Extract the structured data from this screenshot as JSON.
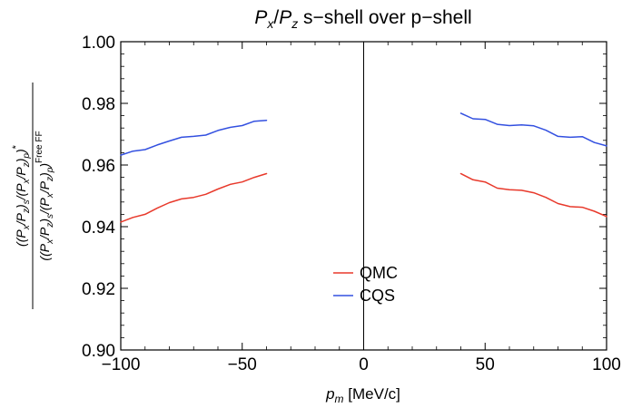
{
  "chart_data": {
    "type": "line",
    "title": "P_x/P_z s−shell over p−shell",
    "xlabel": "p_m [MeV/c]",
    "ylabel_numerator": "((P_x/P_z)_s/(P_x/P_z)_p)*",
    "ylabel_denominator": "((P_x/P_z)_s/(P_x/P_z)_p)^{Free FF}",
    "xlim": [
      -100,
      100
    ],
    "ylim": [
      0.9,
      1.0
    ],
    "xticks": [
      -100,
      -50,
      0,
      50,
      100
    ],
    "xtick_labels": [
      "−100",
      "−50",
      "0",
      "50",
      "100"
    ],
    "yticks": [
      0.9,
      0.92,
      0.94,
      0.96,
      0.98,
      1.0
    ],
    "ytick_labels": [
      "0.90",
      "0.92",
      "0.94",
      "0.96",
      "0.98",
      "1.00"
    ],
    "grid": false,
    "legend_position": "bottom-center",
    "series": [
      {
        "name": "QMC",
        "color": "#e8392b",
        "segments": [
          {
            "x": [
              -100,
              -95,
              -90,
              -85,
              -80,
              -75,
              -70,
              -65,
              -60,
              -55,
              -50,
              -45,
              -40
            ],
            "y": [
              0.9415,
              0.943,
              0.944,
              0.946,
              0.9478,
              0.949,
              0.9495,
              0.9505,
              0.9522,
              0.9537,
              0.9545,
              0.956,
              0.9572
            ]
          },
          {
            "x": [
              40,
              45,
              50,
              55,
              60,
              65,
              70,
              75,
              80,
              85,
              90,
              95,
              100
            ],
            "y": [
              0.9572,
              0.9552,
              0.9545,
              0.9525,
              0.952,
              0.9518,
              0.951,
              0.9495,
              0.9475,
              0.9465,
              0.9463,
              0.945,
              0.9433
            ]
          }
        ]
      },
      {
        "name": "CQS",
        "color": "#3350e0",
        "segments": [
          {
            "x": [
              -100,
              -95,
              -90,
              -85,
              -80,
              -75,
              -70,
              -65,
              -60,
              -55,
              -50,
              -45,
              -40
            ],
            "y": [
              0.9632,
              0.9645,
              0.965,
              0.9665,
              0.9678,
              0.969,
              0.9693,
              0.9697,
              0.9712,
              0.9722,
              0.9728,
              0.9742,
              0.9745
            ]
          },
          {
            "x": [
              40,
              45,
              50,
              55,
              60,
              65,
              70,
              75,
              80,
              85,
              90,
              95,
              100
            ],
            "y": [
              0.9768,
              0.975,
              0.9748,
              0.9732,
              0.9728,
              0.973,
              0.9727,
              0.9713,
              0.9693,
              0.969,
              0.9692,
              0.9673,
              0.9662
            ]
          }
        ]
      }
    ]
  }
}
